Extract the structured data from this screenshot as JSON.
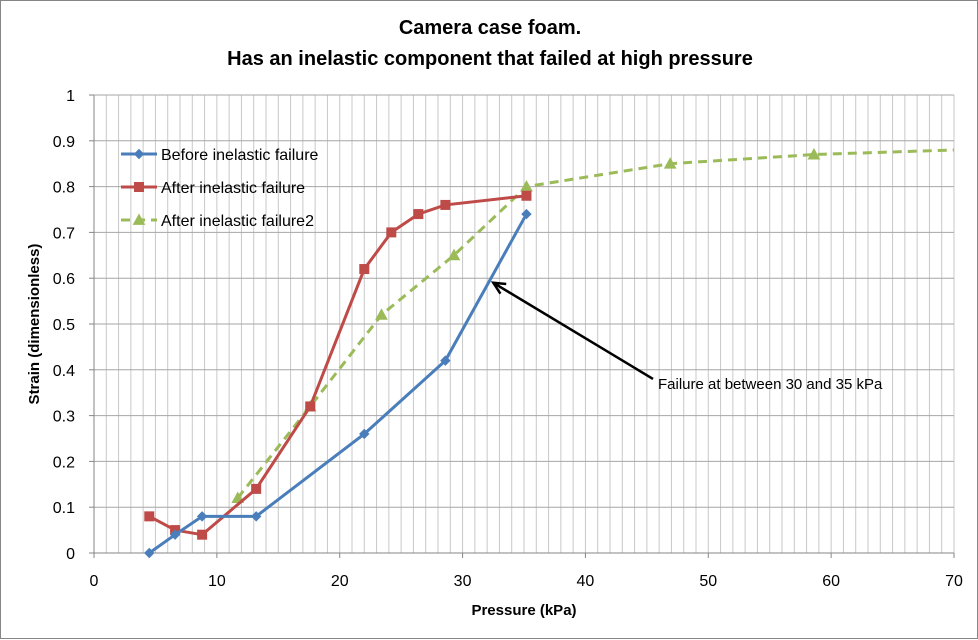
{
  "chart_data": {
    "type": "scatter",
    "title": [
      "Camera case foam.",
      "Has an inelastic component that failed at high pressure"
    ],
    "xlabel": "Pressure  (kPa)",
    "ylabel": "Strain  (dimensionless)",
    "xlim": [
      0,
      70
    ],
    "ylim": [
      0,
      1
    ],
    "x_ticks": [
      0,
      10,
      20,
      30,
      40,
      50,
      60,
      70
    ],
    "y_ticks": [
      0,
      0.1,
      0.2,
      0.3,
      0.4,
      0.5,
      0.6,
      0.7,
      0.8,
      0.9,
      1
    ],
    "y_tick_labels": [
      "0",
      "0.1",
      "0.2",
      "0.3",
      "0.4",
      "0.5",
      "0.6",
      "0.7",
      "0.8",
      "0.9",
      "1"
    ],
    "x_tick_labels": [
      "0",
      "10",
      "20",
      "30",
      "40",
      "50",
      "60",
      "70"
    ],
    "grid": true,
    "legend_position": "top-left",
    "series": [
      {
        "name": "Before inelastic failure",
        "color": "#4a7ebb",
        "marker": "diamond",
        "line": "solid",
        "points": [
          [
            4.5,
            0.0
          ],
          [
            6.6,
            0.04
          ],
          [
            8.8,
            0.08
          ],
          [
            13.2,
            0.08
          ],
          [
            22.0,
            0.26
          ],
          [
            28.6,
            0.42
          ],
          [
            35.2,
            0.74
          ]
        ]
      },
      {
        "name": "After inelastic failure",
        "color": "#be4b48",
        "marker": "square",
        "line": "solid",
        "points": [
          [
            4.5,
            0.08
          ],
          [
            6.6,
            0.05
          ],
          [
            8.8,
            0.04
          ],
          [
            13.2,
            0.14
          ],
          [
            17.6,
            0.32
          ],
          [
            22.0,
            0.62
          ],
          [
            24.2,
            0.7
          ],
          [
            26.4,
            0.74
          ],
          [
            28.6,
            0.76
          ],
          [
            35.2,
            0.78
          ]
        ]
      },
      {
        "name": "After inelastic failure2",
        "color": "#9bbb59",
        "marker": "triangle",
        "line": "dashed",
        "points": [
          [
            11.7,
            0.12
          ],
          [
            17.6,
            0.32
          ],
          [
            23.4,
            0.52
          ],
          [
            29.3,
            0.65
          ],
          [
            35.2,
            0.8
          ],
          [
            46.9,
            0.85
          ],
          [
            58.6,
            0.87
          ],
          [
            70.0,
            0.88
          ]
        ]
      }
    ],
    "annotations": [
      {
        "text": "Failure at between  30 and 35 kPa",
        "arrow_to": [
          32.5,
          0.59
        ],
        "anchor": [
          45.5,
          0.38
        ]
      }
    ]
  }
}
